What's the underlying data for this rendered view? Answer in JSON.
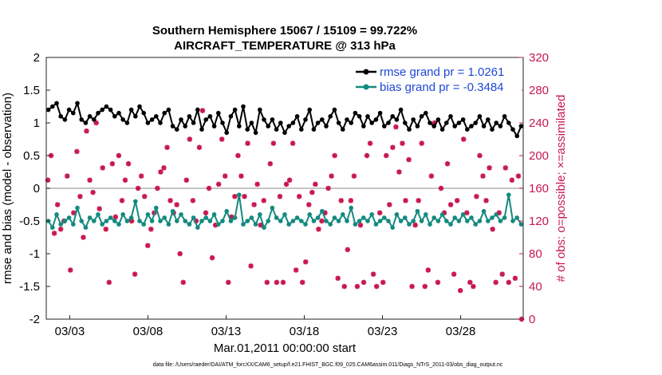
{
  "chart_data": {
    "type": "line",
    "title_line1": "Southern Hemisphere 15067 / 15109 = 99.722%",
    "title_line2": "AIRCRAFT_TEMPERATURE @ 313 hPa",
    "xlabel": "Mar.01,2011 00:00:00 start",
    "ylabel_left": "rmse and bias (model - observation)",
    "ylabel_right": "# of obs: o=possible; ×=assimilated",
    "ylim_left": [
      -2,
      2
    ],
    "ylim_right": [
      0,
      320
    ],
    "xlim_days": [
      1.5,
      32.0
    ],
    "x_ticks": [
      {
        "day": 3,
        "label": "03/03"
      },
      {
        "day": 8,
        "label": "03/08"
      },
      {
        "day": 13,
        "label": "03/13"
      },
      {
        "day": 18,
        "label": "03/18"
      },
      {
        "day": 23,
        "label": "03/23"
      },
      {
        "day": 28,
        "label": "03/28"
      }
    ],
    "y_ticks_left": [
      "2",
      "1.5",
      "1",
      "0.5",
      "0",
      "-0.5",
      "-1",
      "-1.5",
      "-2"
    ],
    "y_ticks_left_values": [
      2,
      1.5,
      1,
      0.5,
      0,
      -0.5,
      -1,
      -1.5,
      -2
    ],
    "y_ticks_right": [
      "320",
      "280",
      "240",
      "200",
      "160",
      "120",
      "80",
      "40",
      "0"
    ],
    "y_ticks_right_values": [
      320,
      280,
      240,
      200,
      160,
      120,
      80,
      40,
      0
    ],
    "legend": [
      {
        "label": "rmse grand pr = 1.0261",
        "color": "#000000"
      },
      {
        "label": "bias grand pr = -0.3484",
        "color": "#138a80"
      }
    ],
    "colors": {
      "rmse": "#000000",
      "bias": "#138a80",
      "obs": "#c8174f",
      "zero_line": "#b0b0b0"
    },
    "rmse": [
      1.2,
      1.25,
      1.3,
      1.1,
      1.05,
      1.2,
      1.15,
      1.3,
      1.05,
      1.0,
      1.1,
      1.05,
      1.15,
      1.2,
      1.25,
      1.2,
      1.1,
      1.15,
      1.05,
      1.0,
      1.2,
      1.1,
      1.25,
      1.15,
      1.0,
      1.05,
      1.1,
      1.0,
      1.15,
      1.2,
      0.95,
      0.9,
      1.05,
      0.95,
      1.1,
      1.0,
      1.2,
      0.9,
      1.05,
      1.1,
      0.95,
      1.15,
      1.0,
      0.85,
      1.1,
      1.2,
      0.95,
      1.25,
      0.9,
      1.0,
      0.85,
      1.2,
      1.05,
      0.95,
      1.05,
      0.9,
      1.0,
      0.85,
      0.95,
      1.0,
      1.1,
      0.9,
      1.05,
      1.2,
      0.9,
      1.0,
      1.05,
      0.95,
      1.1,
      1.2,
      1.0,
      0.9,
      1.05,
      1.0,
      1.15,
      1.1,
      0.95,
      1.1,
      1.0,
      1.05,
      1.15,
      0.95,
      1.0,
      1.1,
      1.05,
      1.2,
      1.0,
      0.9,
      1.05,
      0.95,
      1.1,
      1.15,
      1.0,
      0.95,
      1.05,
      0.9,
      1.0,
      1.1,
      0.95,
      1.0,
      1.05,
      0.9,
      0.95,
      1.0,
      1.1,
      0.95,
      1.05,
      0.9,
      1.0,
      0.95,
      1.1,
      1.0,
      0.9,
      0.8,
      0.95
    ],
    "bias": [
      -0.5,
      -0.6,
      -0.4,
      -0.55,
      -0.5,
      -0.45,
      -0.55,
      -0.3,
      -0.5,
      -0.6,
      -0.45,
      -0.5,
      -0.4,
      -0.55,
      -0.5,
      -0.45,
      -0.5,
      -0.55,
      -0.4,
      -0.5,
      -0.45,
      -0.2,
      -0.5,
      -0.55,
      -0.4,
      -0.5,
      -0.3,
      -0.5,
      -0.45,
      -0.55,
      -0.35,
      -0.5,
      -0.4,
      -0.5,
      -0.55,
      -0.45,
      -0.6,
      -0.5,
      -0.45,
      -0.5,
      -0.4,
      -0.55,
      -0.5,
      -0.35,
      -0.5,
      -0.45,
      -0.1,
      -0.55,
      -0.5,
      -0.45,
      -0.55,
      -0.4,
      -0.6,
      -0.5,
      -0.3,
      -0.45,
      -0.5,
      -0.4,
      -0.55,
      -0.5,
      -0.45,
      -0.5,
      -0.55,
      -0.4,
      -0.5,
      -0.45,
      -0.35,
      -0.5,
      -0.55,
      -0.45,
      -0.5,
      -0.4,
      -0.5,
      -0.3,
      -0.55,
      -0.5,
      -0.45,
      -0.5,
      -0.4,
      -0.55,
      -0.5,
      -0.45,
      -0.5,
      -0.6,
      -0.4,
      -0.5,
      -0.45,
      -0.55,
      -0.5,
      -0.35,
      -0.5,
      -0.4,
      -0.55,
      -0.45,
      -0.5,
      -0.4,
      -0.5,
      -0.55,
      -0.45,
      -0.5,
      -0.4,
      -0.5,
      -0.45,
      -0.55,
      -0.5,
      -0.35,
      -0.5,
      -0.45,
      -0.4,
      -0.5,
      -0.45,
      -0.1,
      -0.5,
      -0.45,
      -0.55
    ],
    "obs_assimilated": [
      170,
      200,
      105,
      140,
      110,
      120,
      175,
      60,
      130,
      205,
      150,
      100,
      230,
      170,
      155,
      240,
      135,
      185,
      110,
      45,
      190,
      125,
      200,
      145,
      170,
      190,
      120,
      55,
      160,
      175,
      150,
      90,
      110,
      130,
      160,
      180,
      185,
      210,
      145,
      130,
      140,
      80,
      45,
      170,
      220,
      145,
      120,
      210,
      255,
      130,
      160,
      75,
      115,
      165,
      220,
      175,
      45,
      125,
      150,
      200,
      175,
      150,
      215,
      65,
      140,
      165,
      115,
      145,
      45,
      190,
      215,
      45,
      150,
      45,
      165,
      170,
      215,
      60,
      150,
      45,
      70,
      140,
      155,
      165,
      110,
      120,
      130,
      160,
      175,
      200,
      50,
      145,
      40,
      85,
      145,
      175,
      40,
      115,
      45,
      200,
      215,
      55,
      40,
      130,
      45,
      200,
      140,
      210,
      235,
      180,
      215,
      145,
      195,
      40,
      115,
      145,
      215,
      40,
      60,
      175,
      240,
      45,
      160,
      130,
      190,
      140,
      55,
      145,
      35,
      220,
      130,
      45,
      40,
      150,
      200,
      175,
      145,
      185,
      110,
      45,
      130,
      55,
      185,
      45,
      170,
      50,
      175,
      0
    ]
  },
  "footnote": "data file: /Users/raeder/DAI/ATM_forcXX/CAM6_setup/f.e21.FHIST_BGC.f09_025.CAM6assim.011/Diags_NTrS_2011-03/obs_diag_output.nc"
}
